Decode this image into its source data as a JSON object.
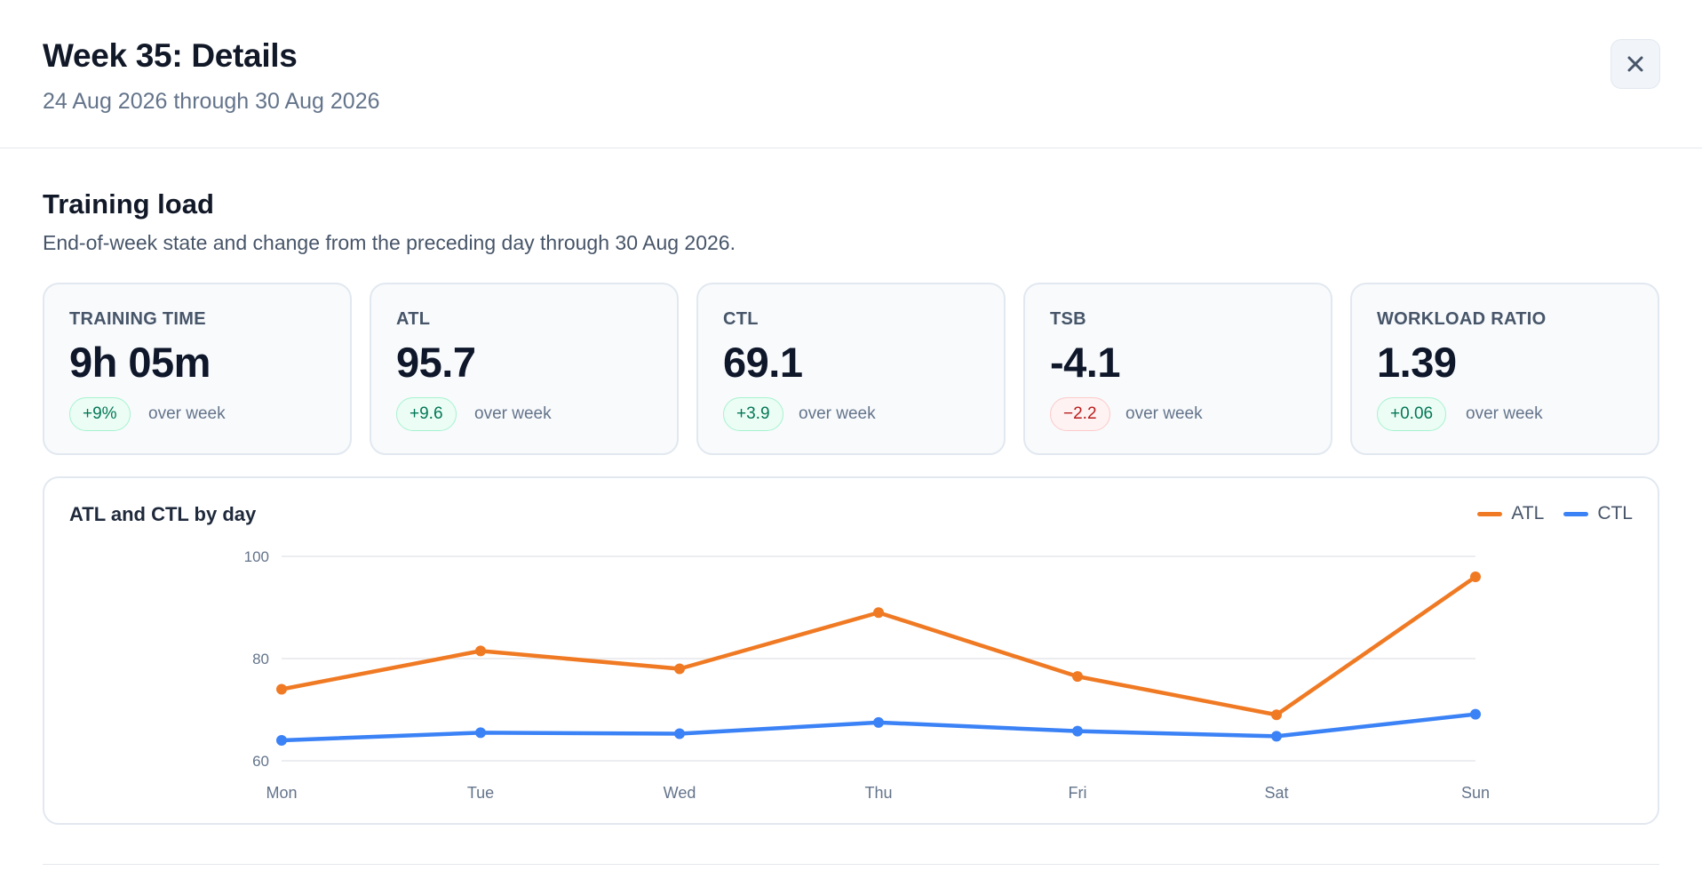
{
  "header": {
    "title": "Week 35: Details",
    "subtitle": "24 Aug 2026 through 30 Aug 2026",
    "close_icon": "close-icon"
  },
  "section": {
    "title": "Training load",
    "description": "End-of-week state and change from the preceding day through 30 Aug 2026."
  },
  "cards": [
    {
      "label": "TRAINING TIME",
      "value": "9h 05m",
      "delta": "+9%",
      "trend": "positive",
      "suffix": "over week"
    },
    {
      "label": "ATL",
      "value": "95.7",
      "delta": "+9.6",
      "trend": "positive",
      "suffix": "over week"
    },
    {
      "label": "CTL",
      "value": "69.1",
      "delta": "+3.9",
      "trend": "positive",
      "suffix": "over week"
    },
    {
      "label": "TSB",
      "value": "-4.1",
      "delta": "−2.2",
      "trend": "negative",
      "suffix": "over week"
    },
    {
      "label": "WORKLOAD RATIO",
      "value": "1.39",
      "delta": "+0.06",
      "trend": "positive",
      "suffix": "over week"
    }
  ],
  "colors": {
    "atl": "#f07a24",
    "ctl": "#3b82f6",
    "positive": "#047857",
    "negative": "#b91c1c"
  },
  "chart_data": {
    "type": "line",
    "title": "ATL and CTL by day",
    "categories": [
      "Mon",
      "Tue",
      "Wed",
      "Thu",
      "Fri",
      "Sat",
      "Sun"
    ],
    "series": [
      {
        "name": "ATL",
        "values": [
          74,
          81.5,
          78,
          89,
          76.5,
          69,
          96
        ],
        "color": "#f07a24"
      },
      {
        "name": "CTL",
        "values": [
          64,
          65.5,
          65.3,
          67.5,
          65.8,
          64.8,
          69.1
        ],
        "color": "#3b82f6"
      }
    ],
    "ylim": [
      60,
      100
    ],
    "yticks": [
      100,
      80,
      60
    ],
    "grid": true,
    "legend": "top-right",
    "xlabel": "",
    "ylabel": ""
  }
}
